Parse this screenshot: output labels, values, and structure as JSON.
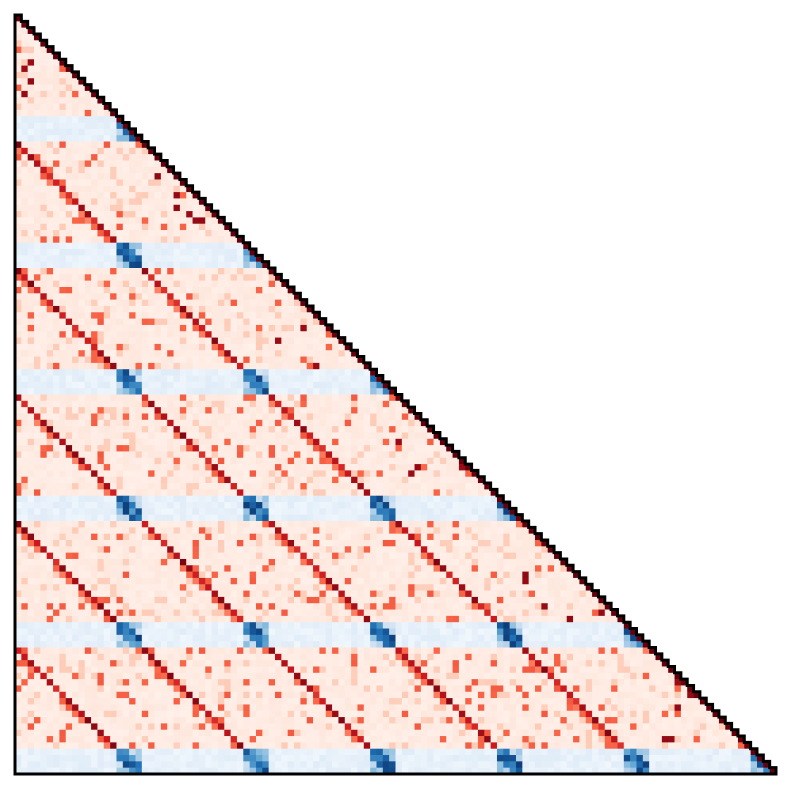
{
  "chart_data": {
    "type": "heatmap",
    "shape": "lower-triangular",
    "n": 120,
    "block_size": 20,
    "n_blocks": 6,
    "value_range": [
      -1,
      1
    ],
    "colors": {
      "positive": [
        "#fff5f0",
        "#fdc8b2",
        "#fb6a4a",
        "#cb181d",
        "#67000d"
      ],
      "negative": [
        "#f7fbff",
        "#c6dbef",
        "#6baed6",
        "#2171b5",
        "#08306b"
      ],
      "outline": "#000000"
    },
    "structure": {
      "diagonal_value": 1.0,
      "background_value": 0.06,
      "negative_row_offsets_in_block": [
        16,
        17,
        18,
        19
      ],
      "negative_row_value": -0.08,
      "negative_hotspot_value": -0.95,
      "cross_block_diagonal_value": 0.95,
      "cross_block_diagonal_value_weak": 0.55
    },
    "grid": false,
    "legend": "none"
  }
}
